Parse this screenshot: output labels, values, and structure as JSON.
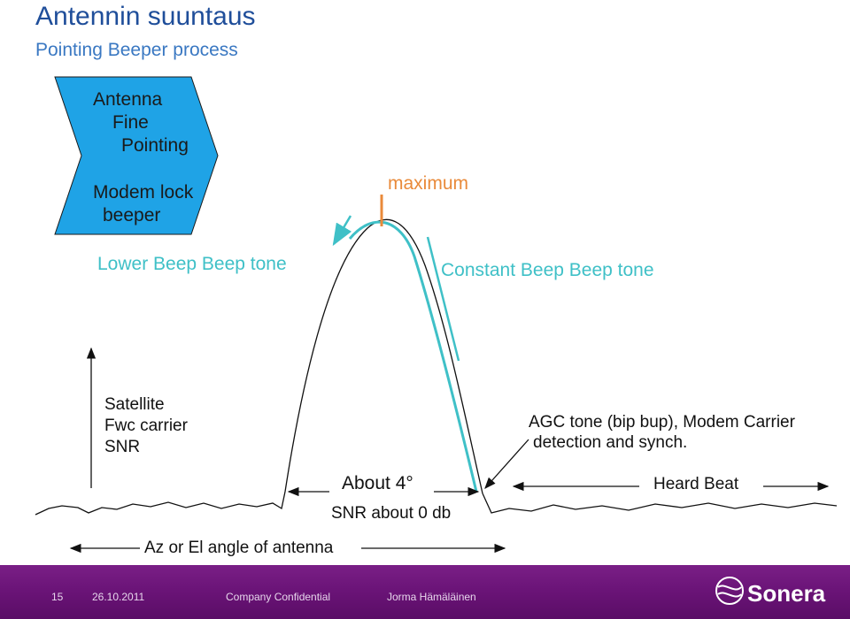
{
  "header": {
    "title": "Antennin suuntaus",
    "subtitle": "Pointing Beeper process"
  },
  "chevron": {
    "line1": "Antenna",
    "line2": "Fine",
    "line3": "Pointing",
    "line4": "Modem lock",
    "line5": "beeper"
  },
  "labels": {
    "lower_beep": "Lower  Beep Beep tone",
    "maximum": "maximum",
    "constant_beep": "Constant Beep Beep tone",
    "axis_y_1": "Satellite",
    "axis_y_2": "Fwc carrier",
    "axis_y_3": "SNR",
    "agc_1": "AGC tone (bip bup), Modem Carrier",
    "agc_2": "detection and synch.",
    "about4": "About 4°",
    "snr_about": "SNR about 0 db",
    "heard_beat": "Heard Beat",
    "angle_axis": "Az or El angle of antenna"
  },
  "footer": {
    "page": "15",
    "date": "26.10.2011",
    "confidential": "Company Confidential",
    "author": "Jorma Hämäläinen",
    "logo": "Sonera"
  },
  "colors": {
    "chevron_fill": "#1fa3e6",
    "teal": "#3fc0c7",
    "orange": "#e98a3a",
    "footer_purple": "#6b1478"
  }
}
